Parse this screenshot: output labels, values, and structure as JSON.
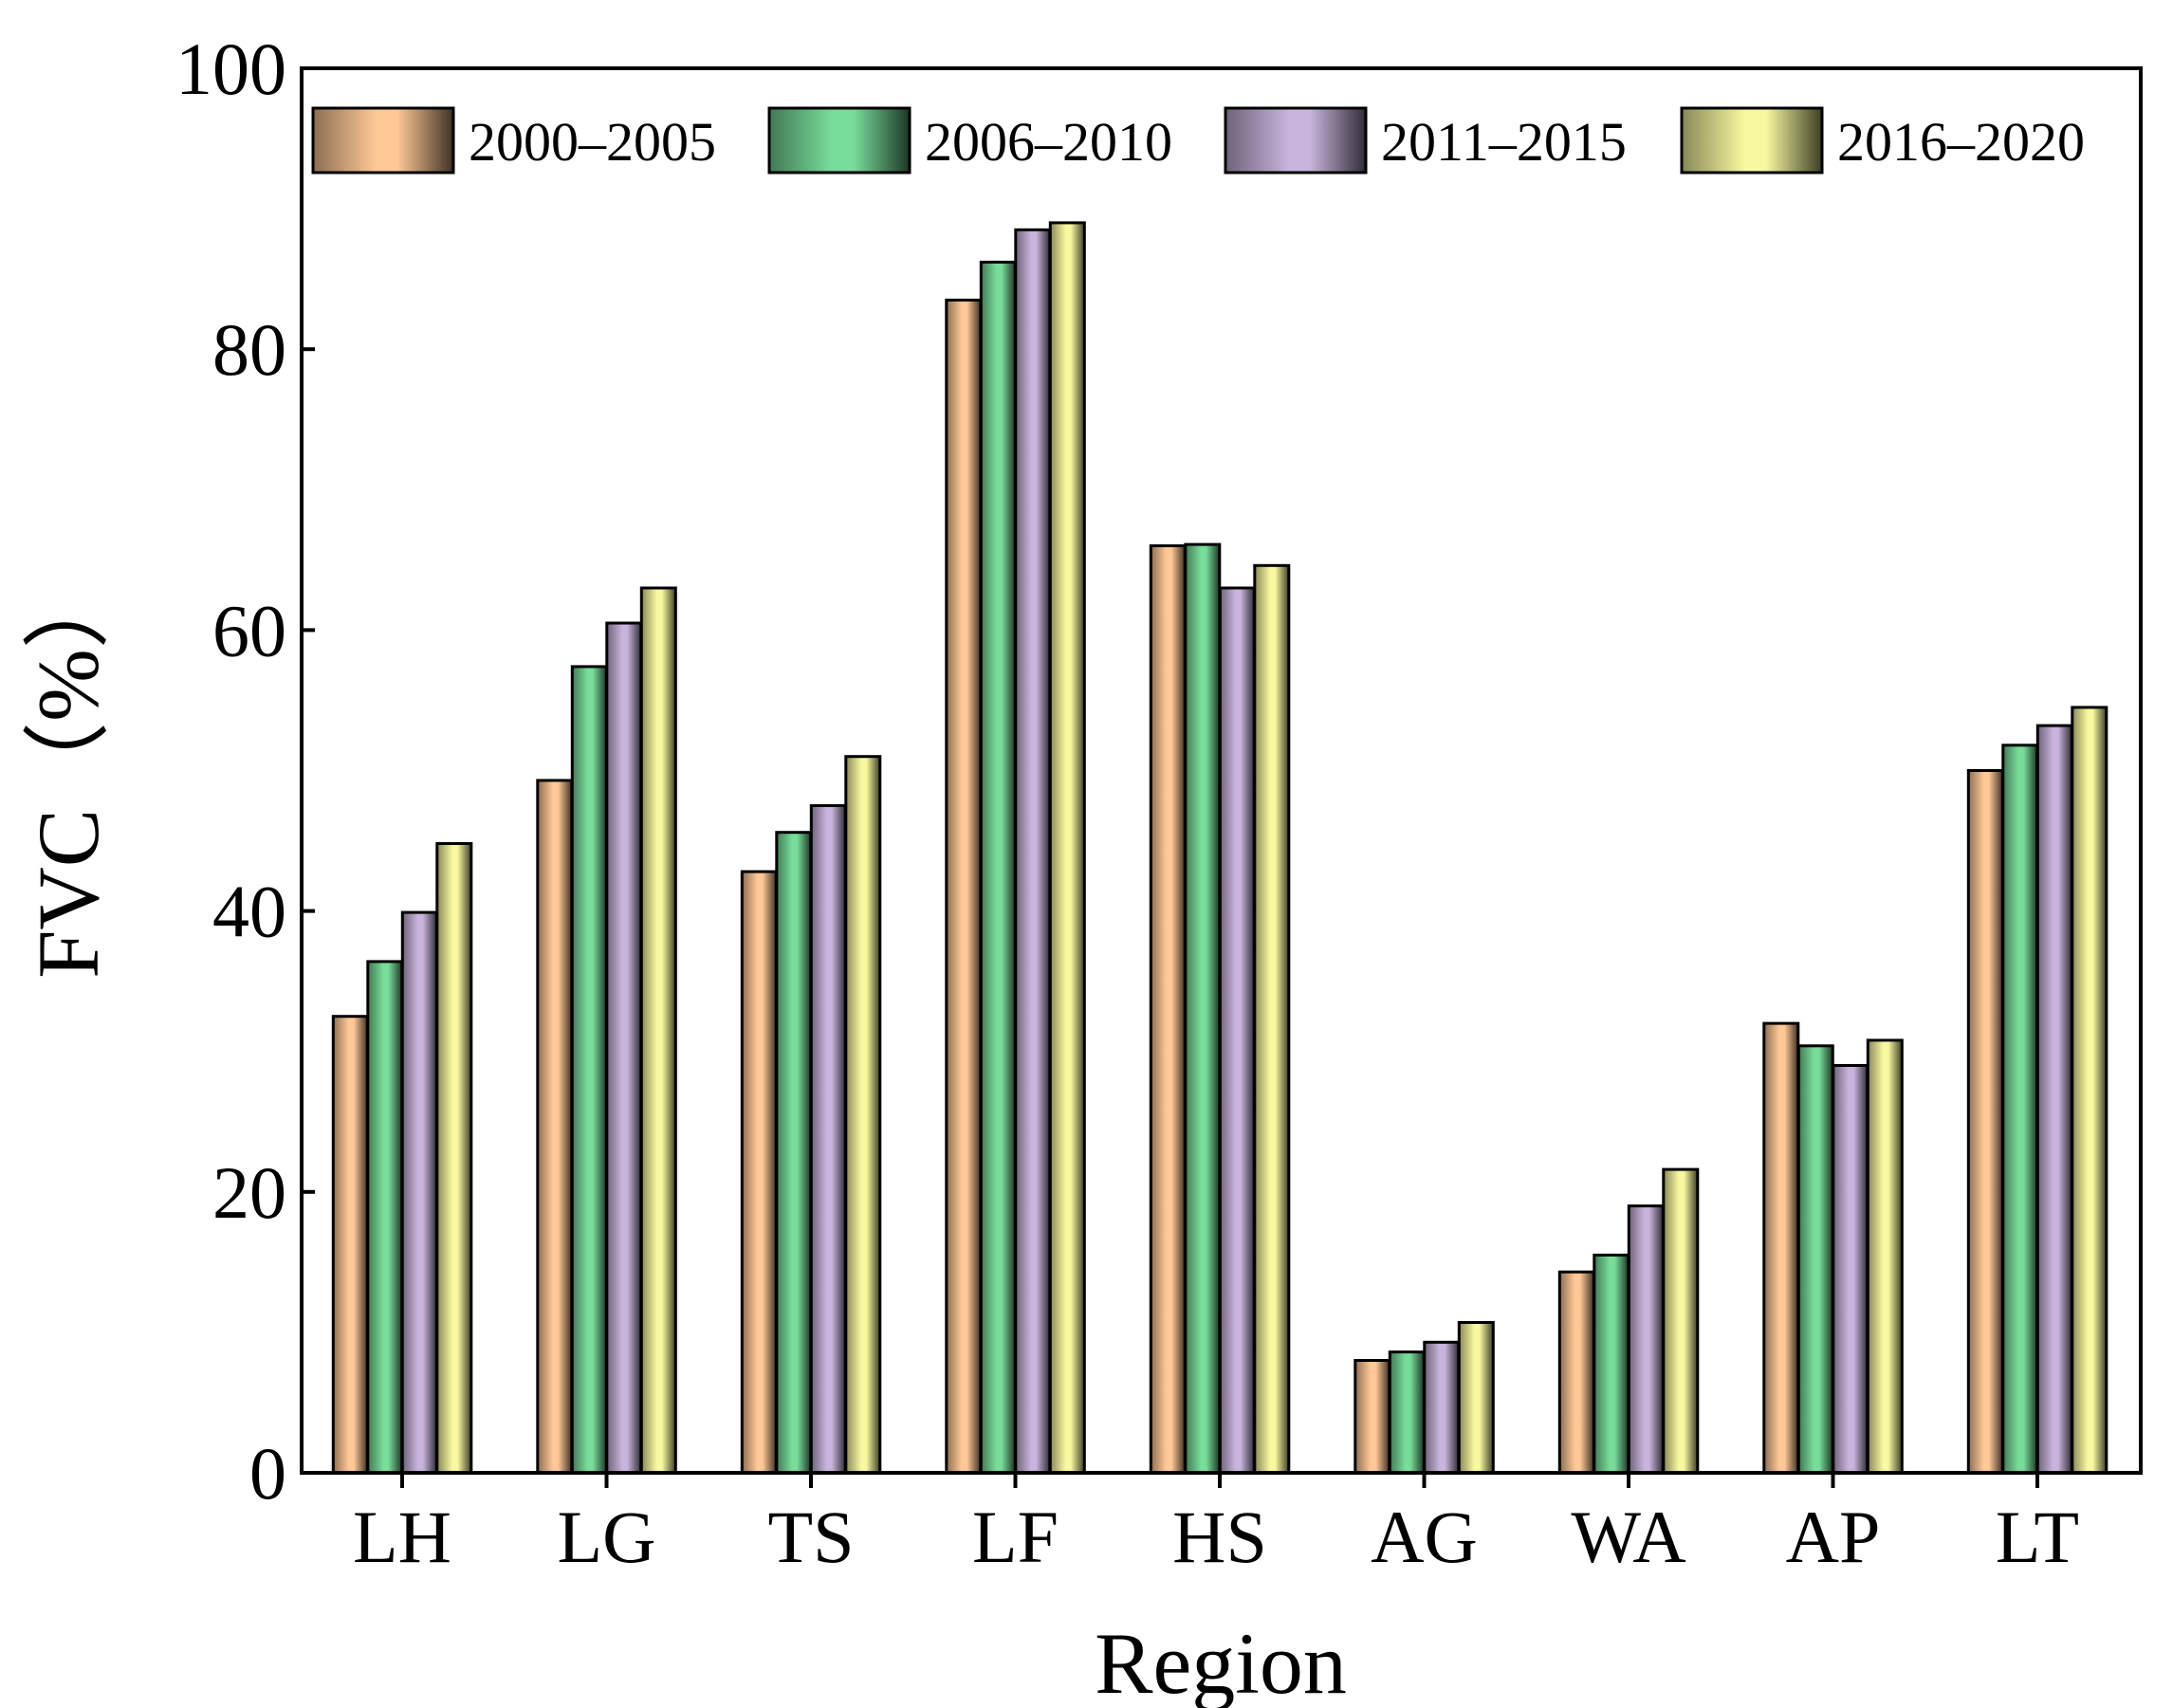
{
  "chart_data": {
    "type": "bar",
    "title": "",
    "xlabel": "Region",
    "ylabel": "FVC（%）",
    "ylim": [
      0,
      100
    ],
    "yticks": [
      0,
      20,
      40,
      60,
      80,
      100
    ],
    "grid": false,
    "legend_position": "top",
    "categories": [
      "LH",
      "LG",
      "TS",
      "LF",
      "HS",
      "AG",
      "WA",
      "AP",
      "LT"
    ],
    "series": [
      {
        "name": "2000–2005",
        "color": "#FFC896",
        "values": [
          32.5,
          49.3,
          42.8,
          83.5,
          66.0,
          8.0,
          14.3,
          32.0,
          50.0
        ]
      },
      {
        "name": "2006–2010",
        "color": "#78DC9A",
        "values": [
          36.4,
          57.4,
          45.6,
          86.2,
          66.1,
          8.6,
          15.5,
          30.4,
          51.8
        ]
      },
      {
        "name": "2011–2015",
        "color": "#C8B4DC",
        "values": [
          39.9,
          60.5,
          47.5,
          88.5,
          63.0,
          9.3,
          19.0,
          29.0,
          53.2
        ]
      },
      {
        "name": "2016–2020",
        "color": "#F8F8A0",
        "values": [
          44.8,
          63.0,
          51.0,
          89.0,
          64.6,
          10.7,
          21.6,
          30.8,
          54.5
        ]
      }
    ]
  }
}
